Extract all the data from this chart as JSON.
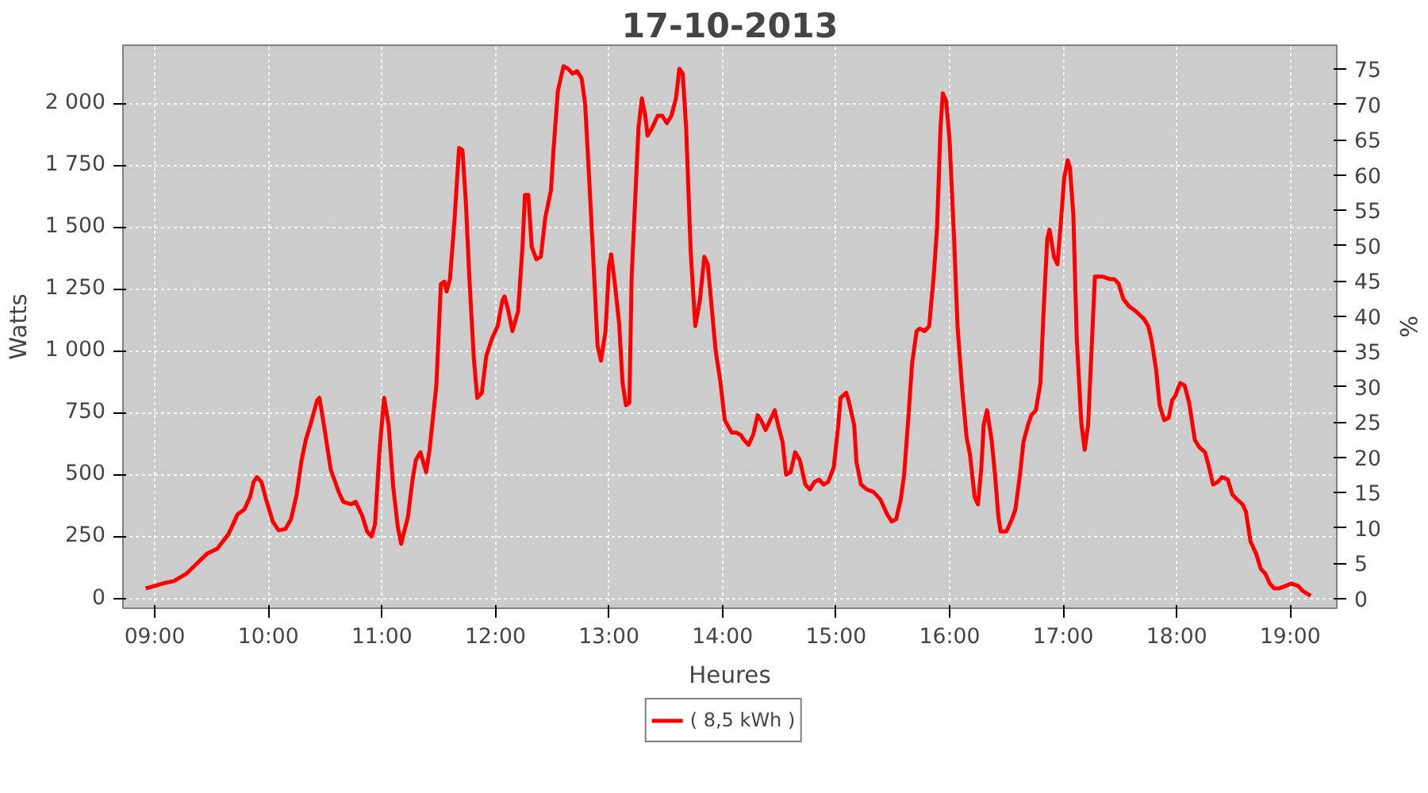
{
  "chart_data": {
    "type": "line",
    "title": "17-10-2013",
    "xlabel": "Heures",
    "ylabel": "Watts",
    "y2label": "%",
    "xlim": [
      8.72,
      19.41
    ],
    "ylim": [
      -40,
      2235
    ],
    "y2lim": [
      -1.4,
      78.4
    ],
    "xticks": [
      {
        "value": 9,
        "label": "09:00"
      },
      {
        "value": 10,
        "label": "10:00"
      },
      {
        "value": 11,
        "label": "11:00"
      },
      {
        "value": 12,
        "label": "12:00"
      },
      {
        "value": 13,
        "label": "13:00"
      },
      {
        "value": 14,
        "label": "14:00"
      },
      {
        "value": 15,
        "label": "15:00"
      },
      {
        "value": 16,
        "label": "16:00"
      },
      {
        "value": 17,
        "label": "17:00"
      },
      {
        "value": 18,
        "label": "18:00"
      },
      {
        "value": 19,
        "label": "19:00"
      }
    ],
    "yticks": [
      0,
      250,
      500,
      750,
      {
        "value": 1000,
        "label": "1 000"
      },
      {
        "value": 1250,
        "label": "1 250"
      },
      {
        "value": 1500,
        "label": "1 500"
      },
      {
        "value": 1750,
        "label": "1 750"
      },
      {
        "value": 2000,
        "label": "2 000"
      }
    ],
    "y2ticks": [
      0,
      5,
      10,
      15,
      20,
      25,
      30,
      35,
      40,
      45,
      50,
      55,
      60,
      65,
      70,
      75
    ],
    "grid": true,
    "legend": "bottom",
    "line_style": "solid",
    "series": [
      {
        "name": "( 8,5 kWh )",
        "color": "#ff0000",
        "x": [
          8.92,
          9.0,
          9.07,
          9.17,
          9.28,
          9.37,
          9.46,
          9.55,
          9.65,
          9.73,
          9.79,
          9.84,
          9.87,
          9.9,
          9.94,
          9.98,
          10.04,
          10.09,
          10.15,
          10.2,
          10.25,
          10.29,
          10.33,
          10.37,
          10.43,
          10.45,
          10.49,
          10.55,
          10.62,
          10.66,
          10.73,
          10.77,
          10.83,
          10.87,
          10.91,
          10.94,
          10.98,
          11.02,
          11.06,
          11.1,
          11.14,
          11.17,
          11.23,
          11.27,
          11.3,
          11.34,
          11.39,
          11.42,
          11.48,
          11.52,
          11.55,
          11.57,
          11.6,
          11.64,
          11.68,
          11.71,
          11.74,
          11.77,
          11.81,
          11.84,
          11.88,
          11.92,
          11.97,
          12.02,
          12.06,
          12.08,
          12.11,
          12.15,
          12.2,
          12.24,
          12.26,
          12.29,
          12.32,
          12.36,
          12.4,
          12.44,
          12.49,
          12.51,
          12.55,
          12.6,
          12.64,
          12.68,
          12.72,
          12.76,
          12.79,
          12.83,
          12.87,
          12.9,
          12.93,
          12.97,
          13.0,
          13.02,
          13.05,
          13.09,
          13.12,
          13.15,
          13.18,
          13.2,
          13.23,
          13.26,
          13.29,
          13.32,
          13.34,
          13.38,
          13.43,
          13.47,
          13.51,
          13.55,
          13.59,
          13.62,
          13.65,
          13.68,
          13.72,
          13.76,
          13.8,
          13.84,
          13.87,
          13.9,
          13.94,
          13.98,
          14.02,
          14.08,
          14.12,
          14.16,
          14.19,
          14.23,
          14.27,
          14.31,
          14.34,
          14.38,
          14.42,
          14.46,
          14.49,
          14.53,
          14.56,
          14.6,
          14.64,
          14.68,
          14.73,
          14.77,
          14.81,
          14.85,
          14.89,
          14.93,
          14.98,
          15.02,
          15.04,
          15.09,
          15.11,
          15.16,
          15.18,
          15.22,
          15.27,
          15.33,
          15.39,
          15.45,
          15.49,
          15.53,
          15.57,
          15.6,
          15.64,
          15.67,
          15.71,
          15.74,
          15.78,
          15.82,
          15.86,
          15.89,
          15.92,
          15.94,
          15.97,
          16.0,
          16.04,
          16.07,
          16.11,
          16.15,
          16.18,
          16.22,
          16.25,
          16.28,
          16.3,
          16.33,
          16.37,
          16.4,
          16.43,
          16.45,
          16.5,
          16.55,
          16.58,
          16.62,
          16.65,
          16.69,
          16.72,
          16.76,
          16.8,
          16.83,
          16.86,
          16.88,
          16.92,
          16.95,
          16.98,
          17.01,
          17.04,
          17.06,
          17.09,
          17.12,
          17.16,
          17.19,
          17.22,
          17.24,
          17.28,
          17.31,
          17.35,
          17.41,
          17.45,
          17.49,
          17.53,
          17.58,
          17.64,
          17.71,
          17.75,
          17.78,
          17.82,
          17.85,
          17.89,
          17.93,
          17.96,
          17.99,
          18.03,
          18.07,
          18.11,
          18.16,
          18.2,
          18.25,
          18.29,
          18.32,
          18.36,
          18.4,
          18.45,
          18.49,
          18.53,
          18.58,
          18.61,
          18.65,
          18.7,
          18.74,
          18.78,
          18.82,
          18.86,
          18.9,
          18.96,
          19.01,
          19.07,
          19.11,
          19.18
        ],
        "values": [
          40,
          50,
          60,
          70,
          100,
          140,
          180,
          200,
          260,
          340,
          360,
          410,
          470,
          490,
          470,
          400,
          310,
          275,
          280,
          320,
          420,
          550,
          640,
          700,
          800,
          810,
          700,
          520,
          430,
          390,
          380,
          390,
          330,
          270,
          250,
          300,
          600,
          810,
          700,
          450,
          290,
          220,
          330,
          480,
          560,
          590,
          510,
          600,
          860,
          1270,
          1280,
          1240,
          1290,
          1530,
          1820,
          1810,
          1600,
          1300,
          970,
          810,
          830,
          980,
          1050,
          1100,
          1200,
          1220,
          1170,
          1080,
          1160,
          1430,
          1630,
          1630,
          1420,
          1370,
          1380,
          1540,
          1650,
          1800,
          2050,
          2150,
          2140,
          2120,
          2130,
          2100,
          2000,
          1660,
          1300,
          1020,
          960,
          1080,
          1340,
          1390,
          1280,
          1110,
          870,
          780,
          790,
          1300,
          1600,
          1900,
          2020,
          1950,
          1870,
          1900,
          1950,
          1950,
          1920,
          1950,
          2020,
          2140,
          2120,
          1900,
          1400,
          1100,
          1200,
          1380,
          1350,
          1200,
          1000,
          880,
          720,
          670,
          670,
          660,
          640,
          620,
          660,
          740,
          720,
          680,
          720,
          760,
          700,
          630,
          500,
          510,
          590,
          560,
          460,
          440,
          470,
          480,
          460,
          470,
          530,
          700,
          810,
          830,
          800,
          700,
          550,
          460,
          440,
          430,
          400,
          340,
          310,
          320,
          400,
          500,
          750,
          950,
          1080,
          1090,
          1080,
          1100,
          1300,
          1500,
          1900,
          2040,
          2010,
          1850,
          1450,
          1100,
          850,
          650,
          580,
          410,
          380,
          530,
          700,
          760,
          640,
          500,
          330,
          270,
          270,
          320,
          360,
          500,
          630,
          700,
          740,
          760,
          870,
          1180,
          1450,
          1490,
          1380,
          1350,
          1520,
          1700,
          1770,
          1740,
          1550,
          1050,
          710,
          600,
          700,
          900,
          1300,
          1300,
          1300,
          1290,
          1290,
          1270,
          1210,
          1180,
          1160,
          1130,
          1100,
          1040,
          920,
          780,
          720,
          730,
          800,
          820,
          870,
          860,
          790,
          640,
          610,
          590,
          520,
          460,
          470,
          490,
          480,
          420,
          400,
          380,
          350,
          230,
          180,
          120,
          100,
          60,
          40,
          40,
          50,
          60,
          50,
          30,
          10
        ]
      }
    ]
  }
}
